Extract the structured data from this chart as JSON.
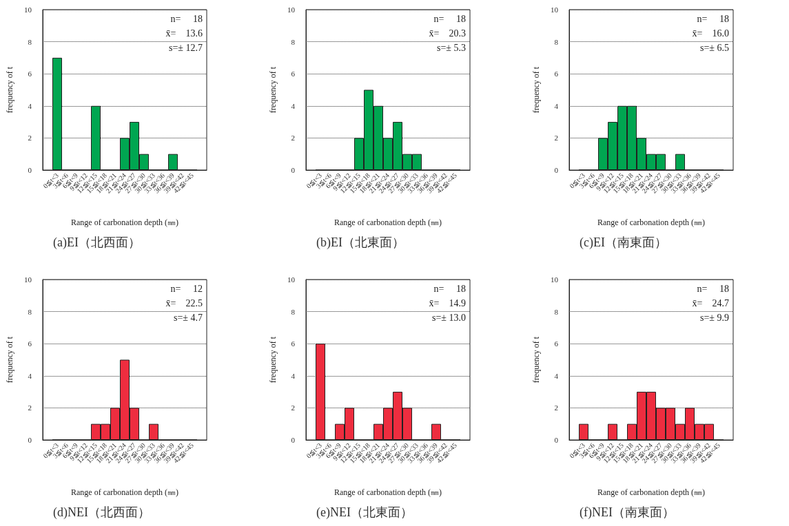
{
  "chart_data": [
    {
      "type": "bar",
      "title": "(a)EI（北西面）",
      "xlabel": "Range of carbonation depth (㎜)",
      "ylabel": "frequency of t",
      "categories": [
        null,
        "0≦t<3",
        "3≦t<6",
        "6≦t<9",
        "9≦t<12",
        "12≦t<15",
        "15≦t<18",
        "18≦t<21",
        "21≦t<24",
        "24≦t<27",
        "27≦t<30",
        "30≦t<33",
        "33≦t<36",
        "36≦t<39",
        "39≦t<42",
        "42≦t<45",
        null
      ],
      "values": [
        null,
        7,
        0,
        0,
        0,
        4,
        0,
        0,
        2,
        3,
        1,
        0,
        0,
        1,
        0,
        0,
        null
      ],
      "color": "#00a651",
      "ylim": [
        0,
        10
      ],
      "yticks": [
        0,
        2,
        4,
        6,
        8,
        10
      ],
      "grid": "y",
      "annotations": [
        "n=　 18",
        "x̄=　13.6",
        "s=± 12.7"
      ]
    },
    {
      "type": "bar",
      "title": "(b)EI（北東面）",
      "xlabel": "Range of carbonation depth (㎜)",
      "ylabel": "frequency of t",
      "categories": [
        null,
        "0≦t<3",
        "3≦t<6",
        "6≦t<9",
        "9≦t<12",
        "12≦t<15",
        "15≦t<18",
        "18≦t<21",
        "21≦t<24",
        "24≦t<27",
        "27≦t<30",
        "30≦t<33",
        "33≦t<36",
        "36≦t<39",
        "39≦t<42",
        "42≦t<45",
        null
      ],
      "values": [
        null,
        0,
        0,
        0,
        0,
        2,
        5,
        4,
        2,
        3,
        1,
        1,
        0,
        0,
        0,
        0,
        null
      ],
      "color": "#00a651",
      "ylim": [
        0,
        10
      ],
      "yticks": [
        0,
        2,
        4,
        6,
        8,
        10
      ],
      "grid": "y",
      "annotations": [
        "n=　 18",
        "x̄=　20.3",
        "s=± 5.3"
      ]
    },
    {
      "type": "bar",
      "title": "(c)EI（南東面）",
      "xlabel": "Range of carbonation depth (㎜)",
      "ylabel": "frequency of t",
      "categories": [
        null,
        "0≦t<3",
        "3≦t<6",
        "6≦t<9",
        "9≦t<12",
        "12≦t<15",
        "15≦t<18",
        "18≦t<21",
        "21≦t<24",
        "24≦t<27",
        "27≦t<30",
        "30≦t<33",
        "33≦t<36",
        "36≦t<39",
        "39≦t<42",
        "42≦t<45",
        null
      ],
      "values": [
        null,
        0,
        0,
        2,
        3,
        4,
        4,
        2,
        1,
        1,
        0,
        1,
        0,
        0,
        0,
        0,
        null
      ],
      "color": "#00a651",
      "ylim": [
        0,
        10
      ],
      "yticks": [
        0,
        2,
        4,
        6,
        8,
        10
      ],
      "grid": "y",
      "annotations": [
        "n=　 18",
        "x̄=　16.0",
        "s=± 6.5"
      ]
    },
    {
      "type": "bar",
      "title": "(d)NEI（北西面）",
      "xlabel": "Range of carbonation depth (㎜)",
      "ylabel": "frequency of t",
      "categories": [
        null,
        "0≦t<3",
        "3≦t<6",
        "6≦t<9",
        "9≦t<12",
        "12≦t<15",
        "15≦t<18",
        "18≦t<21",
        "21≦t<24",
        "24≦t<27",
        "27≦t<30",
        "30≦t<33",
        "33≦t<36",
        "36≦t<39",
        "39≦t<42",
        "42≦t<45",
        null
      ],
      "values": [
        null,
        0,
        0,
        0,
        0,
        1,
        1,
        2,
        5,
        2,
        0,
        1,
        0,
        0,
        0,
        0,
        null
      ],
      "color": "#ee2d3f",
      "ylim": [
        0,
        10
      ],
      "yticks": [
        0,
        2,
        4,
        6,
        8,
        10
      ],
      "grid": "y",
      "annotations": [
        "n=　 12",
        "x̄=　22.5",
        "s=± 4.7"
      ]
    },
    {
      "type": "bar",
      "title": "(e)NEI（北東面）",
      "xlabel": "Range of carbonation depth (㎜)",
      "ylabel": "frequency of t",
      "categories": [
        null,
        "0≦t<3",
        "3≦t<6",
        "6≦t<9",
        "9≦t<12",
        "12≦t<15",
        "15≦t<18",
        "18≦t<21",
        "21≦t<24",
        "24≦t<27",
        "27≦t<30",
        "30≦t<33",
        "33≦t<36",
        "36≦t<39",
        "39≦t<42",
        "42≦t<45",
        null
      ],
      "values": [
        null,
        6,
        0,
        1,
        2,
        0,
        0,
        1,
        2,
        3,
        2,
        0,
        0,
        1,
        0,
        0,
        null
      ],
      "color": "#ee2d3f",
      "ylim": [
        0,
        10
      ],
      "yticks": [
        0,
        2,
        4,
        6,
        8,
        10
      ],
      "grid": "y",
      "annotations": [
        "n=　 18",
        "x̄=　14.9",
        "s=± 13.0"
      ]
    },
    {
      "type": "bar",
      "title": "(f)NEI（南東面）",
      "xlabel": "Range of carbonation depth (㎜)",
      "ylabel": "frequency of t",
      "categories": [
        null,
        "0≦t<3",
        "3≦t<6",
        "6≦t<9",
        "9≦t<12",
        "12≦t<15",
        "15≦t<18",
        "18≦t<21",
        "21≦t<24",
        "24≦t<27",
        "27≦t<30",
        "30≦t<33",
        "33≦t<36",
        "36≦t<39",
        "39≦t<42",
        "42≦t<45",
        null
      ],
      "values": [
        null,
        1,
        0,
        0,
        1,
        0,
        1,
        3,
        3,
        2,
        2,
        1,
        2,
        1,
        1,
        0,
        null
      ],
      "color": "#ee2d3f",
      "ylim": [
        0,
        10
      ],
      "yticks": [
        0,
        2,
        4,
        6,
        8,
        10
      ],
      "grid": "y",
      "annotations": [
        "n=　 18",
        "x̄=　24.7",
        "s=± 9.9"
      ]
    }
  ]
}
